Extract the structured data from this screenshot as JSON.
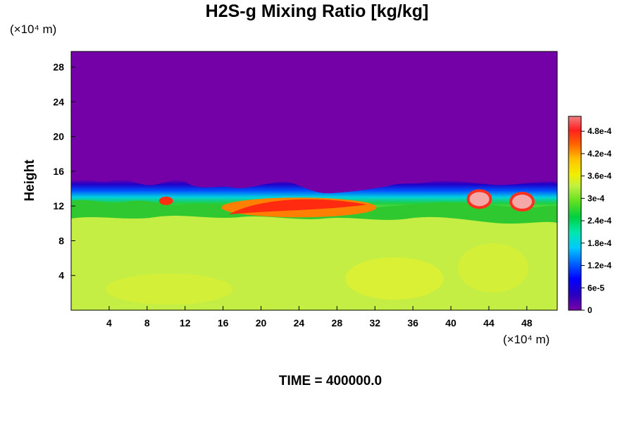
{
  "chart_data": {
    "type": "heatmap",
    "title": "H2S-g Mixing Ratio [kg/kg]",
    "ylabel": "Height",
    "xlabel": "",
    "x_unit": "(×10⁴ m)",
    "y_unit": "(×10⁴ m)",
    "x_range": [
      0,
      51.2
    ],
    "y_range": [
      0,
      29.8
    ],
    "x_ticks": [
      "4",
      "8",
      "12",
      "16",
      "20",
      "24",
      "28",
      "32",
      "36",
      "40",
      "44",
      "48"
    ],
    "y_ticks": [
      "4",
      "8",
      "12",
      "16",
      "20",
      "24",
      "28"
    ],
    "colorbar": {
      "range": [
        0,
        0.00052
      ],
      "tick_values": [
        0,
        6e-05,
        0.00012,
        0.00018,
        0.00024,
        0.0003,
        0.00036,
        0.00042,
        0.00048
      ],
      "tick_labels": [
        "0",
        "6e-5",
        "1.2e-4",
        "1.8e-4",
        "2.4e-4",
        "3e-4",
        "3.6e-4",
        "4.2e-4",
        "4.8e-4"
      ]
    },
    "field_summary": {
      "upper_layer_value": 0,
      "lower_layer_value": 0.00034,
      "interface_height": 14.5,
      "hot_spots": [
        {
          "x": 24,
          "y": 12,
          "value": 0.00046
        },
        {
          "x": 10,
          "y": 12.6,
          "value": 0.00046
        },
        {
          "x": 43,
          "y": 12.8,
          "value": 0.00052
        },
        {
          "x": 47.5,
          "y": 12.5,
          "value": 0.00052
        }
      ]
    },
    "footer": "TIME = 400000.0",
    "colors": {
      "background_field": "#7400a8",
      "mixed_layer": "#c6f542"
    }
  }
}
